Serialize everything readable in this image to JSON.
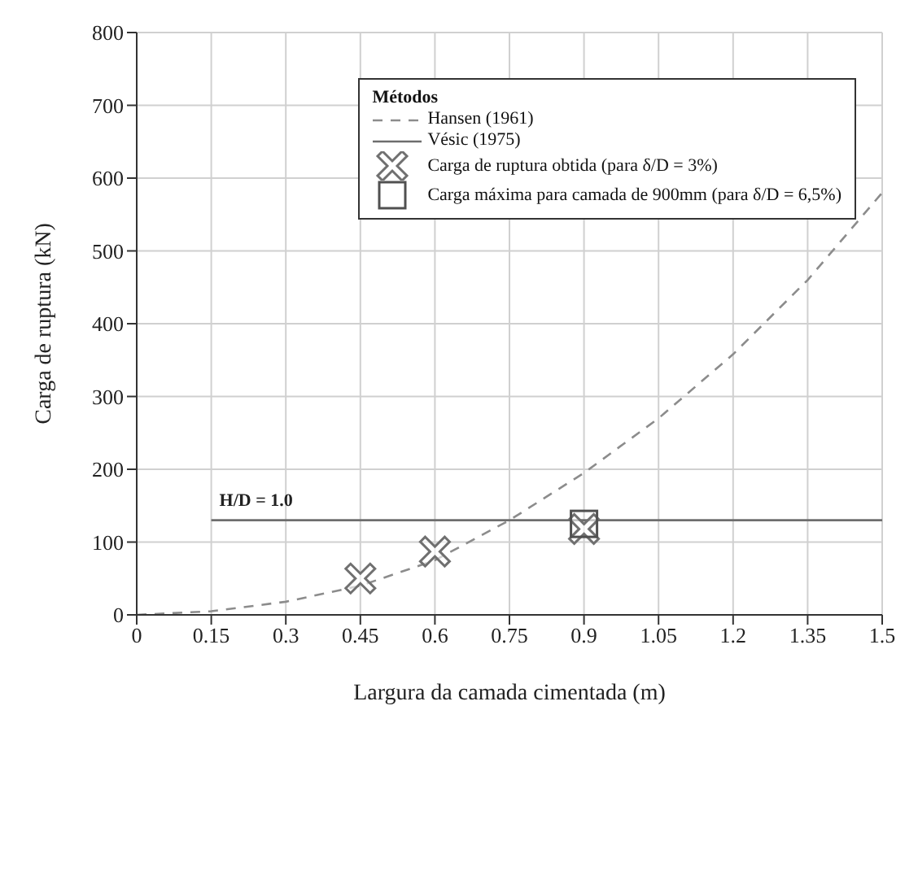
{
  "chart_data": {
    "type": "line",
    "xlabel": "Largura da camada cimentada (m)",
    "ylabel": "Carga de ruptura (kN)",
    "legend_title": "Métodos",
    "legend": "top right",
    "grid": true,
    "xlim": [
      0,
      1.5
    ],
    "xticks": [
      0,
      0.15,
      0.3,
      0.45,
      0.6,
      0.75,
      0.9,
      1.05,
      1.2,
      1.35,
      1.5
    ],
    "ylim": [
      0,
      800
    ],
    "yticks": [
      0,
      100,
      200,
      300,
      400,
      500,
      600,
      700,
      800
    ],
    "series": [
      {
        "name": "Hansen (1961)",
        "line_style": "dashed",
        "marker": "none",
        "color": "#8c8c8c",
        "x": [
          0,
          0.15,
          0.3,
          0.45,
          0.6,
          0.75,
          0.9,
          1.05,
          1.2,
          1.35,
          1.5
        ],
        "values": [
          0,
          5,
          18,
          40,
          75,
          130,
          195,
          270,
          358,
          460,
          580
        ]
      },
      {
        "name": "Vésic (1975)",
        "line_style": "solid",
        "marker": "none",
        "color": "#6e6e6e",
        "x": [
          0.15,
          1.5
        ],
        "values": [
          130,
          130
        ]
      },
      {
        "name": "Carga de ruptura obtida (para δ/D = 3%)",
        "type": "scatter",
        "marker": "cross",
        "color": "#707070",
        "x": [
          0.45,
          0.6,
          0.9
        ],
        "values": [
          50,
          87,
          118
        ]
      },
      {
        "name": "Carga máxima para camada de 900mm (para δ/D = 6,5%)",
        "type": "scatter",
        "marker": "square",
        "color": "#505050",
        "x": [
          0.9
        ],
        "values": [
          125
        ]
      }
    ],
    "annotations": [
      {
        "text": "H/D = 1.0",
        "x": 0.15,
        "y": 130
      }
    ]
  }
}
